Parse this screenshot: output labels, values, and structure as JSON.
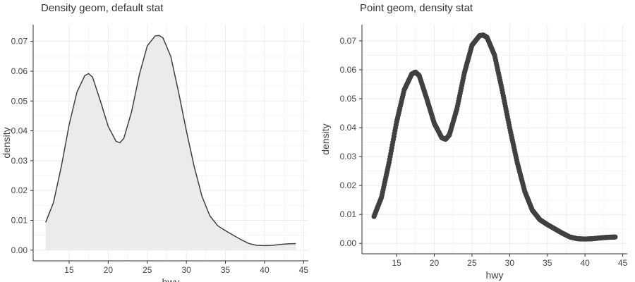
{
  "chart_data": [
    {
      "type": "area",
      "title": "Density geom, default stat",
      "xlabel": "hwy",
      "ylabel": "density",
      "xlim": [
        10.4,
        45.6
      ],
      "ylim": [
        -0.0036,
        0.0756
      ],
      "xticks": [
        "15",
        "20",
        "25",
        "30",
        "35",
        "40",
        "45"
      ],
      "yticks": [
        "0.00",
        "0.01",
        "0.02",
        "0.03",
        "0.04",
        "0.05",
        "0.06",
        "0.07"
      ],
      "grid": true,
      "colors": {
        "line": "#404040",
        "fill": "#ebebeb"
      },
      "series": [
        {
          "x": [
            12,
            13,
            14,
            15,
            16,
            17,
            17.5,
            18,
            19,
            20,
            21,
            21.5,
            22,
            23,
            24,
            25,
            26,
            26.5,
            27,
            28,
            29,
            30,
            31,
            32,
            33,
            34,
            35,
            36,
            37,
            38,
            39,
            40,
            41,
            42,
            43,
            44
          ],
          "y": [
            0.0093,
            0.016,
            0.028,
            0.042,
            0.053,
            0.0585,
            0.0592,
            0.058,
            0.05,
            0.0415,
            0.0365,
            0.036,
            0.0375,
            0.0465,
            0.059,
            0.0685,
            0.0718,
            0.072,
            0.0712,
            0.065,
            0.053,
            0.04,
            0.028,
            0.018,
            0.0115,
            0.0082,
            0.0065,
            0.005,
            0.0035,
            0.0022,
            0.0016,
            0.0015,
            0.0016,
            0.0019,
            0.0021,
            0.0022
          ]
        }
      ]
    },
    {
      "type": "line",
      "title": "Point geom, density stat",
      "xlabel": "hwy",
      "ylabel": "density",
      "xlim": [
        10.4,
        45.6
      ],
      "ylim": [
        -0.0036,
        0.0756
      ],
      "xticks": [
        "15",
        "20",
        "25",
        "30",
        "35",
        "40",
        "45"
      ],
      "yticks": [
        "0.00",
        "0.01",
        "0.02",
        "0.03",
        "0.04",
        "0.05",
        "0.06",
        "0.07"
      ],
      "grid": true,
      "colors": {
        "point": "#404040"
      },
      "series": [
        {
          "x": [
            12,
            13,
            14,
            15,
            16,
            17,
            17.5,
            18,
            19,
            20,
            21,
            21.5,
            22,
            23,
            24,
            25,
            26,
            26.5,
            27,
            28,
            29,
            30,
            31,
            32,
            33,
            34,
            35,
            36,
            37,
            38,
            39,
            40,
            41,
            42,
            43,
            44
          ],
          "y": [
            0.0093,
            0.016,
            0.028,
            0.042,
            0.053,
            0.0585,
            0.0592,
            0.058,
            0.05,
            0.0415,
            0.0365,
            0.036,
            0.0375,
            0.0465,
            0.059,
            0.0685,
            0.0718,
            0.072,
            0.0712,
            0.065,
            0.053,
            0.04,
            0.028,
            0.018,
            0.0115,
            0.0082,
            0.0065,
            0.005,
            0.0035,
            0.0022,
            0.0016,
            0.0015,
            0.0016,
            0.0019,
            0.0021,
            0.0022
          ]
        }
      ]
    }
  ]
}
